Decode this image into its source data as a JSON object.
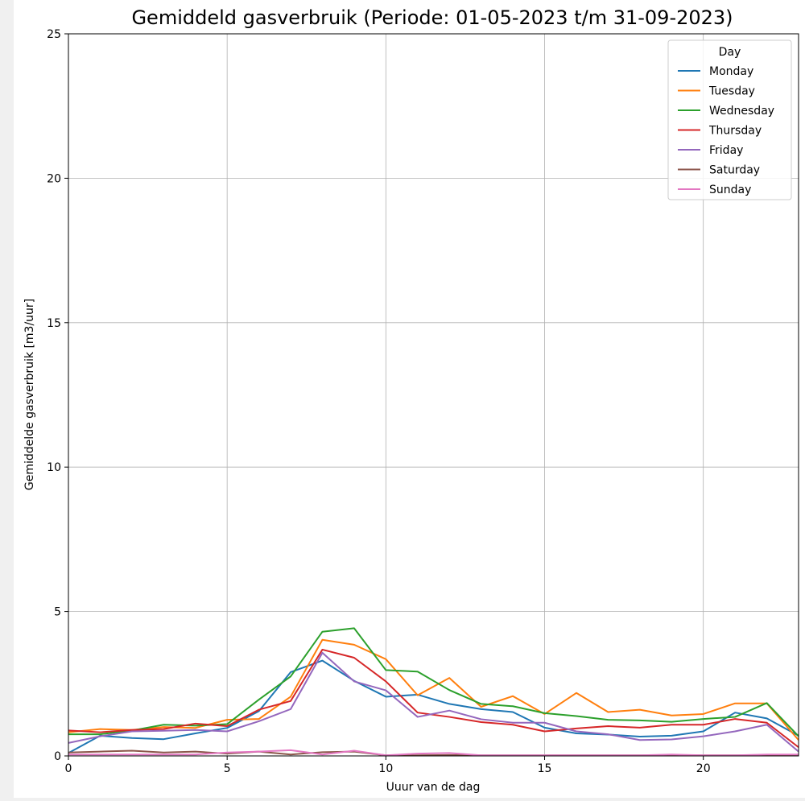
{
  "chart_data": {
    "type": "line",
    "title": "Gemiddeld gasverbruik (Periode: 01-05-2023 t/m 31-09-2023)",
    "xlabel": "Uuur van de dag",
    "ylabel": "Gemiddelde gasverbruik [m3/uur]",
    "xlim": [
      0,
      23
    ],
    "ylim": [
      0,
      25
    ],
    "xticks": [
      0,
      5,
      10,
      15,
      20
    ],
    "yticks": [
      0,
      5,
      10,
      15,
      20,
      25
    ],
    "grid": true,
    "legend": {
      "title": "Day",
      "placement": "top-right"
    },
    "x": [
      0,
      1,
      2,
      3,
      4,
      5,
      6,
      7,
      8,
      9,
      10,
      11,
      12,
      13,
      14,
      15,
      16,
      17,
      18,
      19,
      20,
      21,
      22,
      23
    ],
    "series": [
      {
        "name": "Monday",
        "color": "#1f77b4",
        "values": [
          0.1,
          0.7,
          0.62,
          0.58,
          0.78,
          0.97,
          1.55,
          2.9,
          3.3,
          2.6,
          2.05,
          2.12,
          1.8,
          1.62,
          1.52,
          0.98,
          0.78,
          0.74,
          0.67,
          0.7,
          0.85,
          1.5,
          1.3,
          0.7
        ]
      },
      {
        "name": "Tuesday",
        "color": "#ff7f0e",
        "values": [
          0.82,
          0.93,
          0.9,
          1.0,
          0.97,
          1.25,
          1.28,
          2.05,
          4.02,
          3.85,
          3.35,
          2.1,
          2.7,
          1.7,
          2.07,
          1.45,
          2.18,
          1.52,
          1.6,
          1.4,
          1.45,
          1.82,
          1.82,
          0.55
        ]
      },
      {
        "name": "Wednesday",
        "color": "#2ca02c",
        "values": [
          0.75,
          0.75,
          0.88,
          1.08,
          1.05,
          1.1,
          1.95,
          2.75,
          4.3,
          4.42,
          2.97,
          2.92,
          2.28,
          1.8,
          1.72,
          1.48,
          1.38,
          1.25,
          1.23,
          1.18,
          1.28,
          1.35,
          1.83,
          0.68
        ]
      },
      {
        "name": "Thursday",
        "color": "#d62728",
        "values": [
          0.88,
          0.82,
          0.9,
          0.93,
          1.12,
          1.03,
          1.6,
          1.9,
          3.68,
          3.4,
          2.58,
          1.5,
          1.35,
          1.17,
          1.08,
          0.85,
          0.95,
          1.03,
          0.98,
          1.08,
          1.08,
          1.28,
          1.15,
          0.3
        ]
      },
      {
        "name": "Friday",
        "color": "#9467bd",
        "values": [
          0.45,
          0.68,
          0.85,
          0.87,
          0.9,
          0.85,
          1.2,
          1.62,
          3.57,
          2.58,
          2.27,
          1.35,
          1.57,
          1.27,
          1.15,
          1.15,
          0.85,
          0.75,
          0.55,
          0.57,
          0.68,
          0.85,
          1.08,
          0.15
        ]
      },
      {
        "name": "Saturday",
        "color": "#8c564b",
        "values": [
          0.12,
          0.15,
          0.18,
          0.12,
          0.15,
          0.08,
          0.15,
          0.05,
          0.13,
          0.15,
          0.02,
          0.02,
          0.03,
          0.02,
          0.02,
          0.02,
          0.02,
          0.02,
          0.02,
          0.02,
          0.02,
          0.02,
          0.02,
          0.02
        ]
      },
      {
        "name": "Sunday",
        "color": "#e377c2",
        "values": [
          0.05,
          0.05,
          0.05,
          0.05,
          0.05,
          0.12,
          0.15,
          0.2,
          0.05,
          0.18,
          0.02,
          0.08,
          0.1,
          0.02,
          0.02,
          0.02,
          0.02,
          0.02,
          0.02,
          0.05,
          0.02,
          0.02,
          0.05,
          0.05
        ]
      }
    ]
  }
}
